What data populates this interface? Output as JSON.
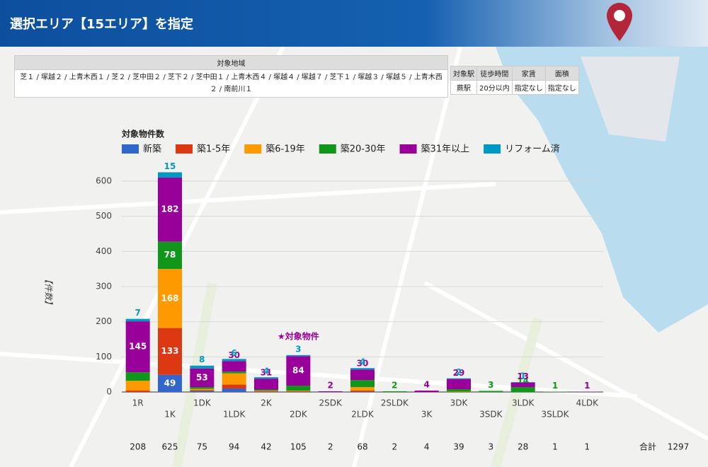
{
  "header": {
    "title": "選択エリア【15エリア】を指定"
  },
  "area_table": {
    "header": "対象地域",
    "areas": "芝１ / 塚越２ / 上青木西１ / 芝２ / 芝中田２ / 芝下２ / 芝中田１ / 上青木西４ / 塚越４ / 塚越７ / 芝下１ / 塚越３ / 塚越５ / 上青木西２ / 南前川１"
  },
  "condition_table": {
    "headers": [
      "対象駅",
      "徒歩時間",
      "家賃",
      "面積"
    ],
    "values": [
      "蕨駅",
      "20分以内",
      "指定なし",
      "指定なし"
    ]
  },
  "chart_data": {
    "type": "bar",
    "stacked": true,
    "title": "対象物件数",
    "y_label": "【件数】",
    "annotation": {
      "text": "★対象物件",
      "category": 5,
      "color": "#990099"
    },
    "categories": [
      "1R",
      "1K",
      "1DK",
      "1LDK",
      "2K",
      "2DK",
      "2SDK",
      "2LDK",
      "2SLDK",
      "3K",
      "3DK",
      "3SDK",
      "3LDK",
      "3SLDK",
      "4LDK"
    ],
    "series": [
      {
        "name": "新築",
        "color": "#3366cc",
        "values": [
          0,
          49,
          3,
          10,
          1,
          1,
          0,
          1,
          0,
          0,
          0,
          0,
          0,
          0,
          0
        ]
      },
      {
        "name": "築1-5年",
        "color": "#dc3912",
        "values": [
          4,
          133,
          2,
          11,
          1,
          1,
          0,
          3,
          0,
          0,
          0,
          0,
          0,
          0,
          0
        ]
      },
      {
        "name": "築6-19年",
        "color": "#ff9900",
        "values": [
          28,
          168,
          4,
          32,
          2,
          2,
          0,
          10,
          0,
          0,
          1,
          0,
          0,
          0,
          0
        ]
      },
      {
        "name": "築20-30年",
        "color": "#109618",
        "values": [
          24,
          78,
          5,
          5,
          3,
          14,
          0,
          20,
          2,
          0,
          7,
          3,
          14,
          1,
          0
        ]
      },
      {
        "name": "築31年以上",
        "color": "#990099",
        "values": [
          145,
          182,
          53,
          30,
          31,
          84,
          2,
          30,
          0,
          4,
          29,
          0,
          13,
          0,
          1
        ]
      },
      {
        "name": "リフォーム済",
        "color": "#0099c6",
        "values": [
          7,
          15,
          8,
          6,
          4,
          3,
          0,
          4,
          0,
          0,
          2,
          0,
          1,
          0,
          0
        ]
      }
    ],
    "ylim": [
      0,
      630
    ],
    "yticks": [
      0,
      100,
      200,
      300,
      400,
      500,
      600
    ],
    "grid": true,
    "legend": "top"
  },
  "totals": {
    "values": [
      208,
      625,
      75,
      94,
      42,
      105,
      2,
      68,
      2,
      4,
      39,
      3,
      28,
      1,
      1
    ],
    "label": "合計",
    "sum": 1297
  }
}
